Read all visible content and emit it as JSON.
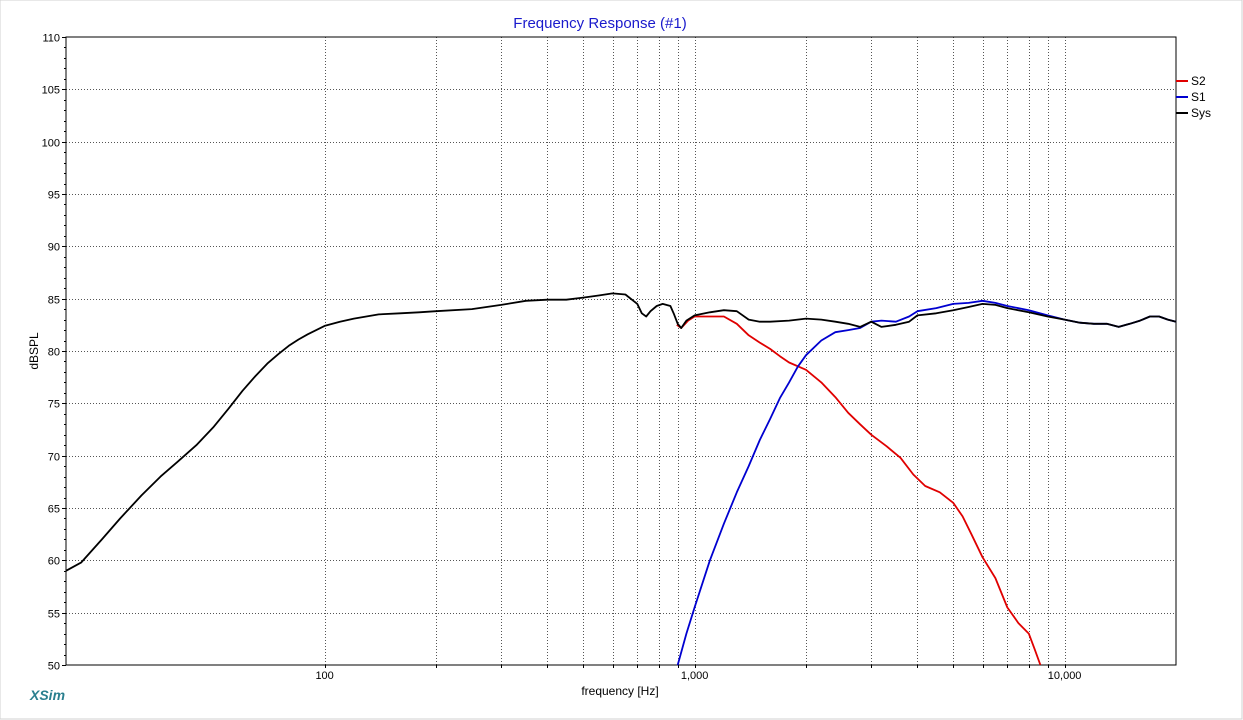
{
  "app": {
    "brand": "XSim",
    "brand_color": "#2a7f8f"
  },
  "chart_data": {
    "type": "line",
    "title": "Frequency Response (#1)",
    "title_color": "#1a1acc",
    "xlabel": "frequency [Hz]",
    "ylabel": "dBSPL",
    "x_scale": "log",
    "xlim": [
      20,
      20000
    ],
    "ylim": [
      50,
      110
    ],
    "y_ticks": [
      50,
      55,
      60,
      65,
      70,
      75,
      80,
      85,
      90,
      95,
      100,
      105,
      110
    ],
    "x_tick_labels": [
      {
        "value": 100,
        "label": "100"
      },
      {
        "value": 1000,
        "label": "1,000"
      },
      {
        "value": 10000,
        "label": "10,000"
      }
    ],
    "x_gridlines": [
      100,
      200,
      300,
      400,
      500,
      600,
      700,
      800,
      900,
      1000,
      2000,
      3000,
      4000,
      5000,
      6000,
      7000,
      8000,
      9000,
      10000
    ],
    "grid": true,
    "legend_position": "top-right",
    "series": [
      {
        "name": "S2",
        "color": "#e00000",
        "points": [
          [
            895,
            82.5
          ],
          [
            920,
            82.2
          ],
          [
            960,
            82.9
          ],
          [
            1000,
            83.3
          ],
          [
            1100,
            83.3
          ],
          [
            1200,
            83.3
          ],
          [
            1300,
            82.6
          ],
          [
            1400,
            81.5
          ],
          [
            1500,
            80.8
          ],
          [
            1600,
            80.2
          ],
          [
            1700,
            79.5
          ],
          [
            1800,
            78.9
          ],
          [
            2000,
            78.2
          ],
          [
            2200,
            77.0
          ],
          [
            2400,
            75.6
          ],
          [
            2600,
            74.1
          ],
          [
            2800,
            73.0
          ],
          [
            3000,
            72.0
          ],
          [
            3300,
            70.9
          ],
          [
            3600,
            69.8
          ],
          [
            3900,
            68.2
          ],
          [
            4200,
            67.1
          ],
          [
            4600,
            66.5
          ],
          [
            5000,
            65.5
          ],
          [
            5300,
            64.2
          ],
          [
            5600,
            62.5
          ],
          [
            6000,
            60.3
          ],
          [
            6500,
            58.3
          ],
          [
            7000,
            55.5
          ],
          [
            7500,
            54.0
          ],
          [
            8000,
            53.0
          ],
          [
            8300,
            51.5
          ],
          [
            8600,
            50.0
          ]
        ]
      },
      {
        "name": "S1",
        "color": "#0000d0",
        "points": [
          [
            900,
            50.0
          ],
          [
            950,
            53.0
          ],
          [
            1000,
            55.5
          ],
          [
            1100,
            60.0
          ],
          [
            1200,
            63.5
          ],
          [
            1300,
            66.5
          ],
          [
            1400,
            69.0
          ],
          [
            1500,
            71.5
          ],
          [
            1600,
            73.5
          ],
          [
            1700,
            75.5
          ],
          [
            1800,
            77.0
          ],
          [
            1900,
            78.5
          ],
          [
            2000,
            79.6
          ],
          [
            2200,
            81.0
          ],
          [
            2400,
            81.8
          ],
          [
            2600,
            82.0
          ],
          [
            2800,
            82.2
          ],
          [
            3000,
            82.8
          ],
          [
            3200,
            82.9
          ],
          [
            3500,
            82.8
          ],
          [
            3800,
            83.3
          ],
          [
            4000,
            83.8
          ],
          [
            4500,
            84.1
          ],
          [
            5000,
            84.5
          ],
          [
            5500,
            84.6
          ],
          [
            6000,
            84.8
          ],
          [
            6500,
            84.6
          ],
          [
            7000,
            84.3
          ],
          [
            8000,
            83.9
          ],
          [
            9000,
            83.4
          ],
          [
            10000,
            83.0
          ],
          [
            11000,
            82.7
          ],
          [
            12000,
            82.6
          ],
          [
            13000,
            82.6
          ],
          [
            14000,
            82.3
          ],
          [
            15000,
            82.6
          ],
          [
            16000,
            82.9
          ],
          [
            17000,
            83.3
          ],
          [
            18000,
            83.3
          ],
          [
            19000,
            83.0
          ],
          [
            20000,
            82.8
          ]
        ]
      },
      {
        "name": "Sys",
        "color": "#000000",
        "points": [
          [
            20,
            59.0
          ],
          [
            22,
            59.8
          ],
          [
            25,
            62.0
          ],
          [
            28,
            64.0
          ],
          [
            32,
            66.2
          ],
          [
            36,
            68.0
          ],
          [
            40,
            69.4
          ],
          [
            45,
            71.0
          ],
          [
            50,
            72.7
          ],
          [
            55,
            74.5
          ],
          [
            60,
            76.2
          ],
          [
            65,
            77.6
          ],
          [
            70,
            78.8
          ],
          [
            75,
            79.7
          ],
          [
            80,
            80.5
          ],
          [
            85,
            81.1
          ],
          [
            90,
            81.6
          ],
          [
            100,
            82.4
          ],
          [
            110,
            82.8
          ],
          [
            120,
            83.1
          ],
          [
            140,
            83.5
          ],
          [
            160,
            83.6
          ],
          [
            180,
            83.7
          ],
          [
            200,
            83.8
          ],
          [
            250,
            84.0
          ],
          [
            300,
            84.4
          ],
          [
            350,
            84.8
          ],
          [
            400,
            84.9
          ],
          [
            450,
            84.9
          ],
          [
            500,
            85.1
          ],
          [
            550,
            85.3
          ],
          [
            600,
            85.5
          ],
          [
            650,
            85.4
          ],
          [
            700,
            84.5
          ],
          [
            720,
            83.6
          ],
          [
            740,
            83.3
          ],
          [
            760,
            83.8
          ],
          [
            790,
            84.3
          ],
          [
            820,
            84.5
          ],
          [
            860,
            84.3
          ],
          [
            880,
            83.5
          ],
          [
            900,
            82.6
          ],
          [
            920,
            82.2
          ],
          [
            950,
            82.9
          ],
          [
            1000,
            83.4
          ],
          [
            1100,
            83.7
          ],
          [
            1200,
            83.9
          ],
          [
            1300,
            83.8
          ],
          [
            1400,
            83.0
          ],
          [
            1500,
            82.8
          ],
          [
            1600,
            82.8
          ],
          [
            1800,
            82.9
          ],
          [
            2000,
            83.1
          ],
          [
            2200,
            83.0
          ],
          [
            2400,
            82.8
          ],
          [
            2600,
            82.6
          ],
          [
            2800,
            82.3
          ],
          [
            3000,
            82.8
          ],
          [
            3200,
            82.3
          ],
          [
            3500,
            82.5
          ],
          [
            3800,
            82.8
          ],
          [
            4000,
            83.4
          ],
          [
            4500,
            83.6
          ],
          [
            5000,
            83.9
          ],
          [
            5500,
            84.2
          ],
          [
            6000,
            84.5
          ],
          [
            6500,
            84.4
          ],
          [
            7000,
            84.1
          ],
          [
            8000,
            83.7
          ],
          [
            9000,
            83.3
          ],
          [
            10000,
            83.0
          ],
          [
            11000,
            82.7
          ],
          [
            12000,
            82.6
          ],
          [
            13000,
            82.6
          ],
          [
            14000,
            82.3
          ],
          [
            15000,
            82.6
          ],
          [
            16000,
            82.9
          ],
          [
            17000,
            83.3
          ],
          [
            18000,
            83.3
          ],
          [
            19000,
            83.0
          ],
          [
            20000,
            82.8
          ]
        ]
      }
    ]
  }
}
